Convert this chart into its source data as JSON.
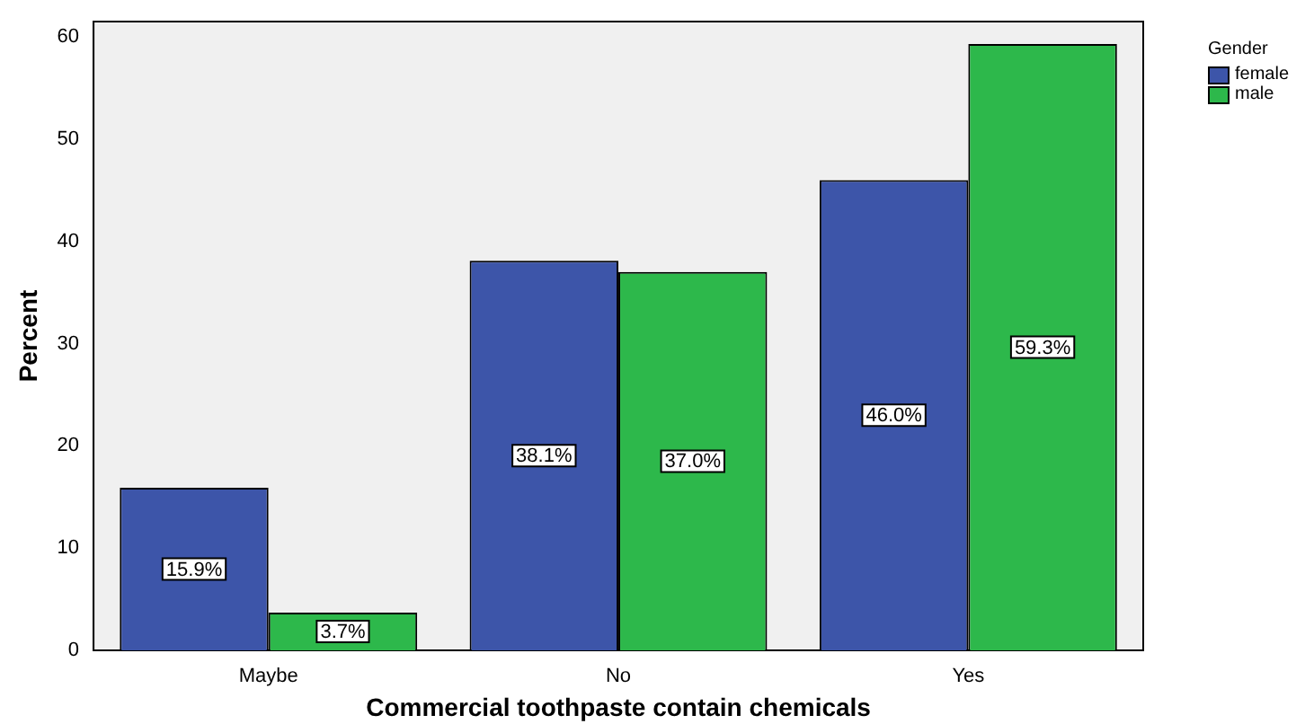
{
  "chart_data": {
    "type": "bar",
    "xlabel": "Commercial toothpaste contain chemicals",
    "ylabel": "Percent",
    "legend_title": "Gender",
    "legend": "top right",
    "categories": [
      "Maybe",
      "No",
      "Yes"
    ],
    "series": [
      {
        "name": "female",
        "color": "#3d55a9",
        "values": [
          15.9,
          38.1,
          46.0
        ],
        "value_labels": [
          "15.9%",
          "38.1%",
          "46.0%"
        ]
      },
      {
        "name": "male",
        "color": "#2db84b",
        "values": [
          3.7,
          37.0,
          59.3
        ],
        "value_labels": [
          "3.7%",
          "37.0%",
          "59.3%"
        ]
      }
    ],
    "ylim": [
      0,
      61.5
    ],
    "yticks": [
      0,
      10,
      20,
      30,
      40,
      50,
      60
    ],
    "grid": false
  }
}
